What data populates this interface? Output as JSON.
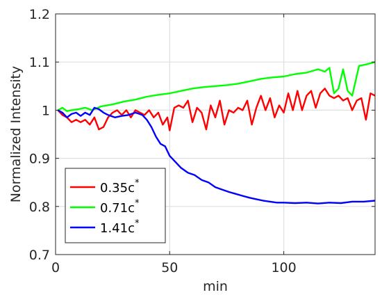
{
  "chart_data": {
    "type": "line",
    "xlabel": "min",
    "ylabel": "Normalized Intensity",
    "xlim": [
      0,
      140
    ],
    "ylim": [
      0.7,
      1.2
    ],
    "xticks": [
      0,
      50,
      100
    ],
    "yticks": [
      0.7,
      0.8,
      0.9,
      1.0,
      1.1,
      1.2
    ],
    "xtick_labels": [
      "0",
      "50",
      "100"
    ],
    "ytick_labels": [
      "0.7",
      "0.8",
      "0.9",
      "1",
      "1.1",
      "1.2"
    ],
    "grid": true,
    "legend_position": "bottom-left",
    "series": [
      {
        "name": "0.35c",
        "name_sup": "*",
        "color": "#ff0000",
        "x": [
          1,
          3,
          5,
          7,
          9,
          11,
          13,
          15,
          17,
          19,
          21,
          23,
          25,
          27,
          29,
          31,
          33,
          35,
          37,
          39,
          41,
          43,
          45,
          47,
          49,
          50,
          52,
          54,
          56,
          58,
          60,
          62,
          64,
          66,
          68,
          70,
          72,
          74,
          76,
          78,
          80,
          82,
          84,
          86,
          88,
          90,
          92,
          94,
          96,
          98,
          100,
          102,
          104,
          106,
          108,
          110,
          112,
          114,
          116,
          118,
          120,
          122,
          124,
          126,
          128,
          130,
          132,
          134,
          136,
          138,
          140
        ],
        "y": [
          1.0,
          0.99,
          0.985,
          0.975,
          0.98,
          0.975,
          0.98,
          0.97,
          0.985,
          0.96,
          0.965,
          0.985,
          0.995,
          1.0,
          0.99,
          1.0,
          0.985,
          1.0,
          0.995,
          0.99,
          1.0,
          0.985,
          0.995,
          0.97,
          0.985,
          0.958,
          1.005,
          1.01,
          1.005,
          1.02,
          0.975,
          1.005,
          0.995,
          0.96,
          1.01,
          0.985,
          1.02,
          0.97,
          1.0,
          0.995,
          1.005,
          1.0,
          1.02,
          0.97,
          1.005,
          1.03,
          1.0,
          1.025,
          0.985,
          1.01,
          0.995,
          1.035,
          1.0,
          1.04,
          1.0,
          1.03,
          1.04,
          1.005,
          1.035,
          1.045,
          1.03,
          1.025,
          1.03,
          1.02,
          1.025,
          1.0,
          1.02,
          1.025,
          0.98,
          1.035,
          1.03
        ]
      },
      {
        "name": "0.71c",
        "name_sup": "*",
        "color": "#00ff00",
        "x": [
          1,
          3,
          5,
          7,
          10,
          13,
          16,
          20,
          25,
          30,
          35,
          40,
          45,
          50,
          55,
          60,
          65,
          70,
          75,
          80,
          85,
          90,
          95,
          100,
          105,
          110,
          115,
          118,
          120,
          122,
          124,
          126,
          128,
          130,
          133,
          136,
          140
        ],
        "y": [
          1.0,
          1.005,
          0.998,
          1.0,
          1.002,
          1.005,
          1.0,
          1.008,
          1.012,
          1.018,
          1.022,
          1.028,
          1.032,
          1.035,
          1.04,
          1.045,
          1.048,
          1.05,
          1.052,
          1.055,
          1.06,
          1.065,
          1.068,
          1.07,
          1.075,
          1.078,
          1.085,
          1.08,
          1.088,
          1.035,
          1.045,
          1.085,
          1.04,
          1.03,
          1.092,
          1.095,
          1.1
        ]
      },
      {
        "name": "1.41c",
        "name_sup": "*",
        "color": "#0000ff",
        "x": [
          1,
          3,
          5,
          7,
          9,
          11,
          13,
          15,
          17,
          19,
          21,
          23,
          26,
          29,
          32,
          35,
          38,
          40,
          42,
          44,
          46,
          48,
          50,
          52,
          55,
          58,
          61,
          64,
          67,
          70,
          73,
          76,
          79,
          82,
          85,
          88,
          91,
          94,
          97,
          100,
          105,
          110,
          115,
          120,
          125,
          130,
          135,
          140
        ],
        "y": [
          1.0,
          0.995,
          0.985,
          0.992,
          0.995,
          0.988,
          0.995,
          0.99,
          1.005,
          1.002,
          0.995,
          0.99,
          0.985,
          0.988,
          0.99,
          0.995,
          0.99,
          0.98,
          0.965,
          0.945,
          0.93,
          0.925,
          0.905,
          0.895,
          0.88,
          0.87,
          0.865,
          0.855,
          0.85,
          0.84,
          0.835,
          0.83,
          0.826,
          0.822,
          0.818,
          0.815,
          0.812,
          0.81,
          0.808,
          0.808,
          0.807,
          0.808,
          0.806,
          0.808,
          0.807,
          0.81,
          0.81,
          0.812
        ]
      }
    ]
  }
}
